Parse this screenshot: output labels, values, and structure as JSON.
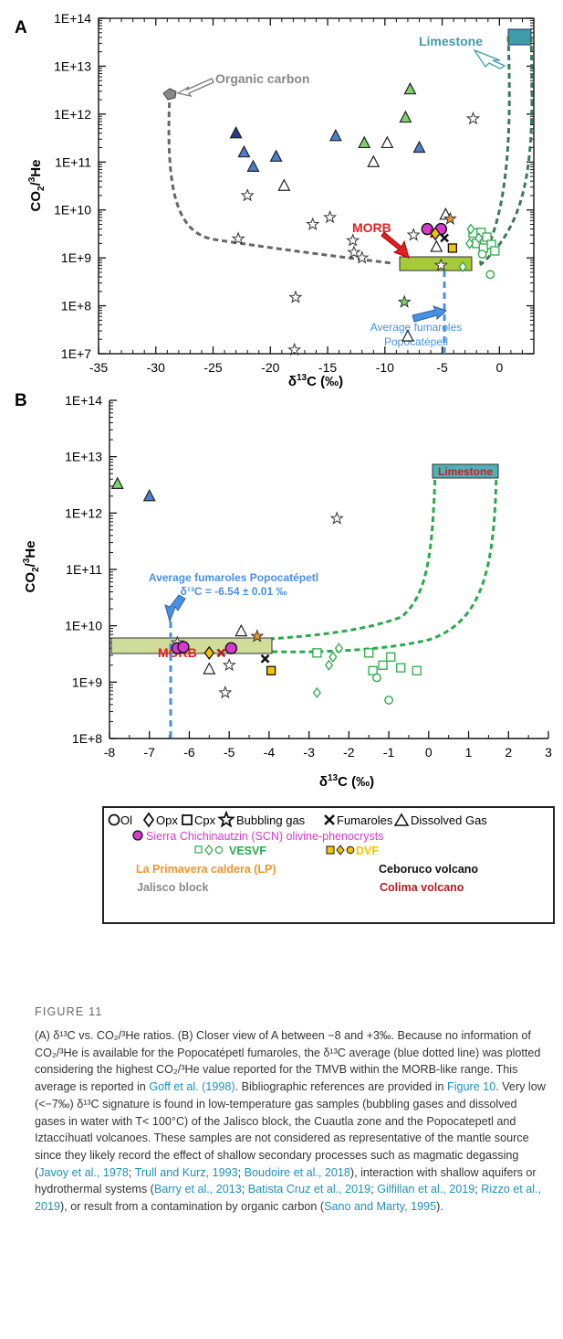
{
  "colors": {
    "jalisco": "#888888",
    "vesvf": "#2aaa4a",
    "lp": "#f0952a",
    "dvf": "#f2c500",
    "ceboruco": "#111111",
    "colima": "#b01e1e",
    "scn": "#d63ad0",
    "blue_tri": "#4a7fd0",
    "organic": "#888888",
    "limestone": "#3f9ca8",
    "morb_fill": "#a6c93a",
    "avg_blue": "#4a90e2",
    "morb_text": "#e02020"
  },
  "panel_a": {
    "letter": "A",
    "annotations": {
      "organic": "Organic carbon",
      "limestone": "Limestone",
      "morb": "MORB",
      "avg_line1": "Average fumaroles",
      "avg_line2": "Popocatépetl"
    }
  },
  "panel_b": {
    "letter": "B",
    "annotations": {
      "limestone": "Limestone",
      "morb": "MORB",
      "avg_line1": "Average fumaroles Popocatépetl",
      "avg_line2": "δ¹³C = -6.54 ± 0.01 ‰"
    }
  },
  "chart_data": [
    {
      "type": "scatter",
      "panel": "A",
      "xlabel": "δ¹³C (‰)",
      "ylabel": "CO₂/³He",
      "xlim": [
        -35,
        3
      ],
      "ylim": [
        10000000.0,
        100000000000000.0
      ],
      "y_scale": "log",
      "x_ticks": [
        -35,
        -30,
        -25,
        -20,
        -15,
        -10,
        -5,
        0
      ],
      "y_ticks": [
        "1E+7",
        "1E+8",
        "1E+9",
        "1E+10",
        "1E+11",
        "1E+12",
        "1E+13",
        "1E+14"
      ],
      "points": [
        {
          "x": -23,
          "y": 400000000000.0,
          "marker": "tri",
          "fill": "#2b3a8c"
        },
        {
          "x": -22.3,
          "y": 160000000000.0,
          "marker": "tri",
          "fill": "#4a7fd0"
        },
        {
          "x": -21.5,
          "y": 80000000000.0,
          "marker": "tri",
          "fill": "#4a7fd0"
        },
        {
          "x": -19.5,
          "y": 130000000000.0,
          "marker": "tri",
          "fill": "#4a7fd0"
        },
        {
          "x": -14.3,
          "y": 350000000000.0,
          "marker": "tri",
          "fill": "#4a7fd0"
        },
        {
          "x": -7,
          "y": 200000000000.0,
          "marker": "tri",
          "fill": "#4a7fd0"
        },
        {
          "x": -11.8,
          "y": 250000000000.0,
          "marker": "tri",
          "fill": "#7dd36a"
        },
        {
          "x": -8.2,
          "y": 850000000000.0,
          "marker": "tri",
          "fill": "#7dd36a"
        },
        {
          "x": -7.8,
          "y": 3300000000000.0,
          "marker": "tri",
          "fill": "#7dd36a"
        },
        {
          "x": -18.8,
          "y": 32000000000.0,
          "marker": "tri",
          "fill": "#ffffff"
        },
        {
          "x": -11,
          "y": 100000000000.0,
          "marker": "tri",
          "fill": "#ffffff"
        },
        {
          "x": -9.8,
          "y": 250000000000.0,
          "marker": "tri",
          "fill": "#ffffff"
        },
        {
          "x": -8,
          "y": 23000000.0,
          "marker": "tri",
          "fill": "#ffffff"
        },
        {
          "x": -5.5,
          "y": 1700000000.0,
          "marker": "tri",
          "fill": "#ffffff"
        },
        {
          "x": -4.7,
          "y": 8000000000.0,
          "marker": "tri",
          "fill": "#ffffff"
        },
        {
          "x": -22,
          "y": 20000000000.0,
          "marker": "star",
          "fill": "#ffffff"
        },
        {
          "x": -22.8,
          "y": 2500000000.0,
          "marker": "star",
          "fill": "#ffffff"
        },
        {
          "x": -17.8,
          "y": 150000000.0,
          "marker": "star",
          "fill": "#ffffff"
        },
        {
          "x": -17.9,
          "y": 12000000.0,
          "marker": "star",
          "fill": "#ffffff"
        },
        {
          "x": -16.3,
          "y": 5000000000.0,
          "marker": "star",
          "fill": "#ffffff"
        },
        {
          "x": -14.8,
          "y": 7000000000.0,
          "marker": "star",
          "fill": "#ffffff"
        },
        {
          "x": -12.8,
          "y": 2300000000.0,
          "marker": "star",
          "fill": "#ffffff"
        },
        {
          "x": -12.7,
          "y": 1300000000.0,
          "marker": "star",
          "fill": "#ffffff"
        },
        {
          "x": -12,
          "y": 1000000000.0,
          "marker": "star",
          "fill": "#ffffff"
        },
        {
          "x": -7.5,
          "y": 3000000000.0,
          "marker": "star",
          "fill": "#ffffff"
        },
        {
          "x": -5.1,
          "y": 700000000.0,
          "marker": "star",
          "fill": "#ffffff"
        },
        {
          "x": -2.3,
          "y": 800000000000.0,
          "marker": "star",
          "fill": "#ffffff"
        },
        {
          "x": -8.3,
          "y": 120000000.0,
          "marker": "star",
          "fill": "#7dd36a"
        },
        {
          "x": -4.3,
          "y": 6500000000.0,
          "marker": "star",
          "fill": "#f0952a"
        },
        {
          "x": -6.3,
          "y": 4000000000.0,
          "marker": "circle",
          "fill": "#d63ad0"
        },
        {
          "x": -5.1,
          "y": 4000000000.0,
          "marker": "circle",
          "fill": "#d63ad0"
        },
        {
          "x": -5.7,
          "y": 3200000000.0,
          "marker": "x",
          "fill": "#b01e1e"
        },
        {
          "x": -4.8,
          "y": 2600000000.0,
          "marker": "x",
          "fill": "#111111"
        },
        {
          "x": -5.6,
          "y": 3200000000.0,
          "marker": "diamond",
          "fill": "#f2c500"
        },
        {
          "x": -4.1,
          "y": 1600000000.0,
          "marker": "square",
          "fill": "#f2c500"
        },
        {
          "x": -2.3,
          "y": 3300000000.0,
          "marker": "square",
          "fill": "#ffffff"
        },
        {
          "x": -2.0,
          "y": 2000000000.0,
          "marker": "square",
          "fill": "#ffffff"
        },
        {
          "x": -1.6,
          "y": 3400000000.0,
          "marker": "square",
          "fill": "#ffffff"
        },
        {
          "x": -1.4,
          "y": 1600000000.0,
          "marker": "square",
          "fill": "#ffffff"
        },
        {
          "x": -1.1,
          "y": 2700000000.0,
          "marker": "square",
          "fill": "#ffffff"
        },
        {
          "x": -0.7,
          "y": 1900000000.0,
          "marker": "square",
          "fill": "#ffffff"
        },
        {
          "x": -0.4,
          "y": 1400000000.0,
          "marker": "square",
          "fill": "#ffffff"
        },
        {
          "x": -3.2,
          "y": 650000000.0,
          "marker": "diamond",
          "fill": "#ffffff"
        },
        {
          "x": -2.6,
          "y": 2000000000.0,
          "marker": "diamond",
          "fill": "#ffffff"
        },
        {
          "x": -2.5,
          "y": 4000000000.0,
          "marker": "diamond",
          "fill": "#ffffff"
        },
        {
          "x": -1.8,
          "y": 2600000000.0,
          "marker": "diamond",
          "fill": "#ffffff"
        },
        {
          "x": -1.5,
          "y": 1200000000.0,
          "marker": "circle",
          "fill": "#ffffff"
        },
        {
          "x": -0.8,
          "y": 450000000.0,
          "marker": "circle",
          "fill": "#ffffff"
        }
      ]
    },
    {
      "type": "scatter",
      "panel": "B",
      "xlabel": "δ¹³C (‰)",
      "ylabel": "CO₂/³He",
      "xlim": [
        -8,
        3
      ],
      "ylim": [
        100000000.0,
        100000000000000.0
      ],
      "y_scale": "log",
      "x_ticks": [
        -8,
        -7,
        -6,
        -5,
        -4,
        -3,
        -2,
        -1,
        0,
        1,
        2,
        3
      ],
      "y_ticks": [
        "1E+8",
        "1E+9",
        "1E+10",
        "1E+11",
        "1E+12",
        "1E+13",
        "1E+14"
      ],
      "points": [
        {
          "x": -7.8,
          "y": 3300000000000.0,
          "marker": "tri",
          "fill": "#7dd36a"
        },
        {
          "x": -7,
          "y": 2000000000000.0,
          "marker": "tri",
          "fill": "#4a7fd0"
        },
        {
          "x": -4.7,
          "y": 8000000000.0,
          "marker": "tri",
          "fill": "#ffffff"
        },
        {
          "x": -5.5,
          "y": 1700000000.0,
          "marker": "tri",
          "fill": "#ffffff"
        },
        {
          "x": -2.3,
          "y": 800000000000.0,
          "marker": "star",
          "fill": "#ffffff"
        },
        {
          "x": -5.1,
          "y": 650000000.0,
          "marker": "star",
          "fill": "#ffffff"
        },
        {
          "x": -6.3,
          "y": 5000000000.0,
          "marker": "star",
          "fill": "#ffffff"
        },
        {
          "x": -5.0,
          "y": 2000000000.0,
          "marker": "star",
          "fill": "#ffffff"
        },
        {
          "x": -4.3,
          "y": 6500000000.0,
          "marker": "star",
          "fill": "#f0952a"
        },
        {
          "x": -6.3,
          "y": 4000000000.0,
          "marker": "circle",
          "fill": "#d63ad0"
        },
        {
          "x": -6.15,
          "y": 4200000000.0,
          "marker": "circle",
          "fill": "#d63ad0"
        },
        {
          "x": -4.95,
          "y": 4000000000.0,
          "marker": "circle",
          "fill": "#d63ad0"
        },
        {
          "x": -5.2,
          "y": 3300000000.0,
          "marker": "x",
          "fill": "#b01e1e"
        },
        {
          "x": -4.1,
          "y": 2600000000.0,
          "marker": "x",
          "fill": "#111111"
        },
        {
          "x": -5.5,
          "y": 3300000000.0,
          "marker": "diamond",
          "fill": "#f2c500"
        },
        {
          "x": -3.95,
          "y": 1600000000.0,
          "marker": "square",
          "fill": "#f2c500"
        },
        {
          "x": -2.8,
          "y": 3300000000.0,
          "marker": "square",
          "fill": "#ffffff"
        },
        {
          "x": -1.5,
          "y": 3300000000.0,
          "marker": "square",
          "fill": "#ffffff"
        },
        {
          "x": -1.4,
          "y": 1600000000.0,
          "marker": "square",
          "fill": "#ffffff"
        },
        {
          "x": -1.15,
          "y": 2000000000.0,
          "marker": "square",
          "fill": "#ffffff"
        },
        {
          "x": -0.95,
          "y": 2800000000.0,
          "marker": "square",
          "fill": "#ffffff"
        },
        {
          "x": -0.7,
          "y": 1800000000.0,
          "marker": "square",
          "fill": "#ffffff"
        },
        {
          "x": -0.3,
          "y": 1600000000.0,
          "marker": "square",
          "fill": "#ffffff"
        },
        {
          "x": -2.8,
          "y": 650000000.0,
          "marker": "diamond",
          "fill": "#ffffff"
        },
        {
          "x": -2.5,
          "y": 2000000000.0,
          "marker": "diamond",
          "fill": "#ffffff"
        },
        {
          "x": -2.4,
          "y": 2800000000.0,
          "marker": "diamond",
          "fill": "#ffffff"
        },
        {
          "x": -2.25,
          "y": 4000000000.0,
          "marker": "diamond",
          "fill": "#ffffff"
        },
        {
          "x": -1.3,
          "y": 1200000000.0,
          "marker": "circle",
          "fill": "#ffffff"
        },
        {
          "x": -1.0,
          "y": 480000000.0,
          "marker": "circle",
          "fill": "#ffffff"
        }
      ]
    }
  ],
  "legend": {
    "row1": {
      "ol": "Ol",
      "opx": "Opx",
      "cpx": "Cpx",
      "bubbling": "Bubbling gas",
      "fumaroles": "Fumaroles",
      "dissolved": "Dissolved Gas"
    },
    "scn": "Sierra Chichinautzin (SCN) olivine-phenocrysts",
    "vesvf": "VESVF",
    "dvf": "DVF",
    "lp": "La Primavera caldera (LP)",
    "ceboruco": "Ceboruco volcano",
    "jalisco": "Jalisco block",
    "colima": "Colima volcano"
  },
  "caption": {
    "label": "FIGURE 11",
    "p1": "(A) δ¹³C vs. CO₂/³He ratios. (B) Closer view of A between −8 and +3‰. Because no information of CO₂/³He is available for the Popocatépetl fumaroles, the δ¹³C average (blue dotted line) was plotted considering the highest CO₂/³He value reported for the TMVB within the MORB-like range. This average is reported in ",
    "r1": "Goff et al. (1998)",
    "p2": ". Bibliographic references are provided in ",
    "r2": "Figure 10",
    "p3": ". Very low (<−7‰) δ¹³C signature is found in low-temperature gas samples (bubbling gases and dissolved gases in water with T< 100°C) of the Jalisco block, the Cuautla zone and the Popocatepetl and Iztaccíhuatl volcanoes. These samples are not considered as representative of the mantle source since they likely record the effect of shallow secondary processes such as magmatic degassing (",
    "r3": "Javoy et al., 1978",
    "p4": "; ",
    "r4": "Trull and Kurz, 1993",
    "p5": "; ",
    "r5": "Boudoire et al., 2018",
    "p6": "), interaction with shallow aquifers or hydrothermal systems (",
    "r6": "Barry et al., 2013",
    "p7": "; ",
    "r7": "Batista Cruz et al., 2019",
    "p8": "; ",
    "r8": "Gilfillan et al., 2019",
    "p9": "; ",
    "r9": "Rizzo et al., 2019",
    "p10": "), or result from a contamination by organic carbon (",
    "r10": "Sano and Marty, 1995",
    "p11": ")."
  }
}
